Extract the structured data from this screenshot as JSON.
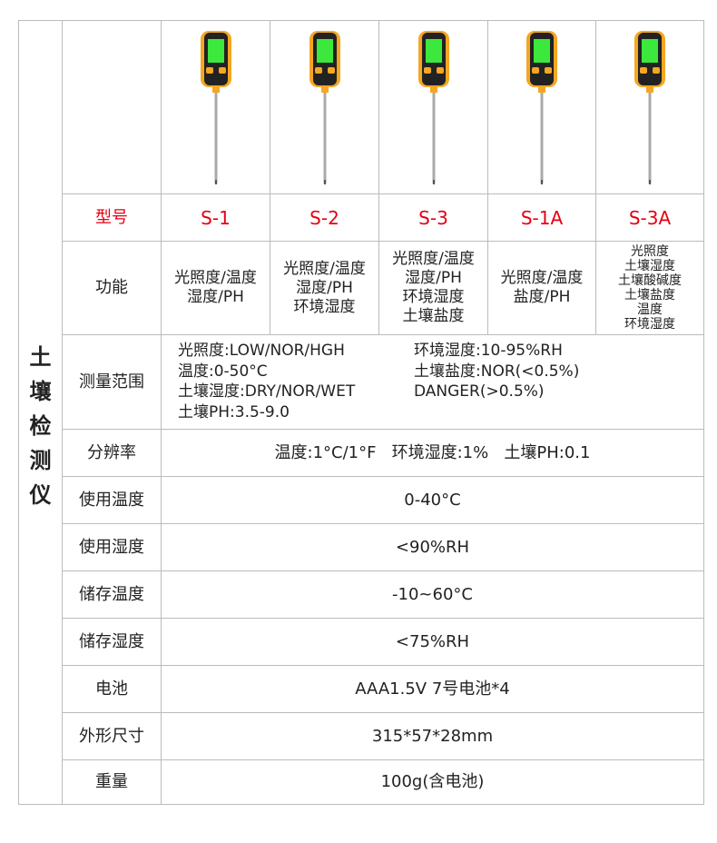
{
  "side_title": "土壤检测仪",
  "row_labels": {
    "model": "型号",
    "function": "功能",
    "range": "测量范围",
    "resolution": "分辨率",
    "use_temp": "使用温度",
    "use_humidity": "使用湿度",
    "store_temp": "储存温度",
    "store_humidity": "储存湿度",
    "battery": "电池",
    "size": "外形尺寸",
    "weight": "重量"
  },
  "products": [
    {
      "model": "S-1",
      "functions": [
        "光照度/温度",
        "湿度/PH"
      ]
    },
    {
      "model": "S-2",
      "functions": [
        "光照度/温度",
        "湿度/PH",
        "环境湿度"
      ]
    },
    {
      "model": "S-3",
      "functions": [
        "光照度/温度",
        "湿度/PH",
        "环境湿度",
        "土壤盐度"
      ]
    },
    {
      "model": "S-1A",
      "functions": [
        "光照度/温度",
        "盐度/PH"
      ]
    },
    {
      "model": "S-3A",
      "functions": [
        "光照度",
        "土壤湿度",
        "土壤酸碱度",
        "土壤盐度",
        "温度",
        "环境湿度"
      ]
    }
  ],
  "range": {
    "left": [
      "光照度:LOW/NOR/HGH",
      "温度:0-50°C",
      "土壤湿度:DRY/NOR/WET",
      "土壤PH:3.5-9.0"
    ],
    "right": [
      "环境湿度:10-95%RH",
      "土壤盐度:NOR(<0.5%)",
      "DANGER(>0.5%)"
    ]
  },
  "values": {
    "resolution": "温度:1°C/1°F   环境湿度:1%   土壤PH:0.1",
    "use_temp": "0-40°C",
    "use_humidity": "<90%RH",
    "store_temp": "-10~60°C",
    "store_humidity": "<75%RH",
    "battery": "AAA1.5V 7号电池*4",
    "size": "315*57*28mm",
    "weight": "100g(含电池)"
  },
  "colors": {
    "model_text": "#e60012",
    "border": "#bbbbbb"
  }
}
